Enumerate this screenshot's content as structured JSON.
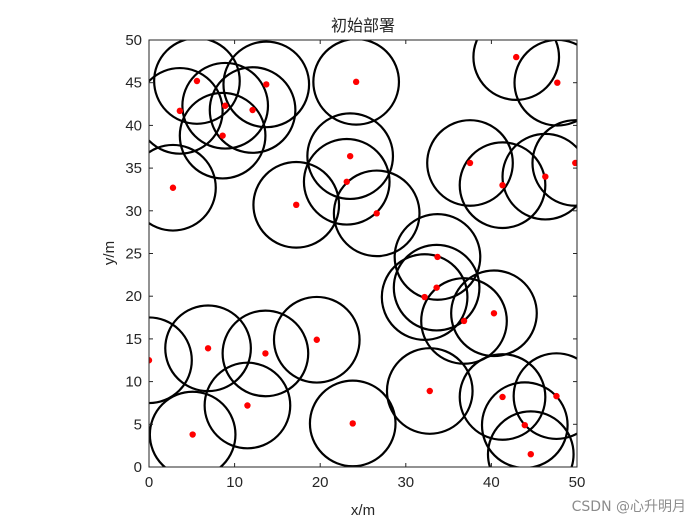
{
  "chart_data": {
    "type": "scatter",
    "title": "初始部署",
    "xlabel": "x/m",
    "ylabel": "y/m",
    "xlim": [
      0,
      50
    ],
    "ylim": [
      0,
      50
    ],
    "x_ticks": [
      "0",
      "10",
      "20",
      "30",
      "40",
      "50"
    ],
    "y_ticks": [
      "0",
      "5",
      "10",
      "15",
      "20",
      "25",
      "30",
      "35",
      "40",
      "45",
      "50"
    ],
    "grid": false,
    "legend": "none",
    "coverage_radius": 5,
    "point_color": "#ff0000",
    "circle_color": "#000000",
    "points": [
      {
        "x": 5.6,
        "y": 45.2
      },
      {
        "x": 13.7,
        "y": 44.8
      },
      {
        "x": 24.2,
        "y": 45.1
      },
      {
        "x": 42.9,
        "y": 48.0
      },
      {
        "x": 47.7,
        "y": 45.0
      },
      {
        "x": 3.6,
        "y": 41.7
      },
      {
        "x": 8.9,
        "y": 42.3
      },
      {
        "x": 12.1,
        "y": 41.8
      },
      {
        "x": 8.6,
        "y": 38.8
      },
      {
        "x": 2.8,
        "y": 32.7
      },
      {
        "x": 17.2,
        "y": 30.7
      },
      {
        "x": 23.5,
        "y": 36.4
      },
      {
        "x": 23.1,
        "y": 33.4
      },
      {
        "x": 26.6,
        "y": 29.7
      },
      {
        "x": 37.5,
        "y": 35.6
      },
      {
        "x": 41.3,
        "y": 33.0
      },
      {
        "x": 46.3,
        "y": 34.0
      },
      {
        "x": 49.8,
        "y": 35.6
      },
      {
        "x": 33.7,
        "y": 24.6
      },
      {
        "x": 33.6,
        "y": 21.0
      },
      {
        "x": 32.2,
        "y": 19.9
      },
      {
        "x": 40.3,
        "y": 18.0
      },
      {
        "x": 36.8,
        "y": 17.1
      },
      {
        "x": 0.0,
        "y": 12.5
      },
      {
        "x": 6.9,
        "y": 13.9
      },
      {
        "x": 13.6,
        "y": 13.3
      },
      {
        "x": 19.6,
        "y": 14.9
      },
      {
        "x": 11.5,
        "y": 7.2
      },
      {
        "x": 5.1,
        "y": 3.8
      },
      {
        "x": 23.8,
        "y": 5.1
      },
      {
        "x": 32.8,
        "y": 8.9
      },
      {
        "x": 41.3,
        "y": 8.2
      },
      {
        "x": 47.6,
        "y": 8.3
      },
      {
        "x": 43.9,
        "y": 4.9
      },
      {
        "x": 44.6,
        "y": 1.5
      }
    ]
  },
  "watermark": "CSDN @心升明月"
}
